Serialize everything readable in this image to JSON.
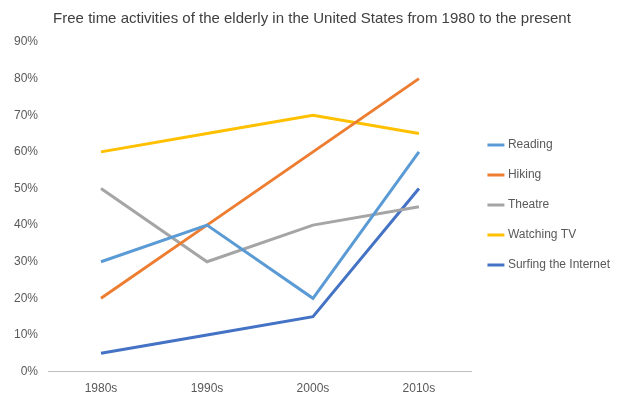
{
  "chart_data": {
    "type": "line",
    "title": "Free time activities of the elderly in the United States from 1980 to the present",
    "categories": [
      "1980s",
      "1990s",
      "2000s",
      "2010s"
    ],
    "series": [
      {
        "name": "Reading",
        "color": "#5b9bd5",
        "values": [
          30,
          40,
          20,
          60
        ]
      },
      {
        "name": "Hiking",
        "color": "#ed7d31",
        "values": [
          20,
          40,
          60,
          80
        ]
      },
      {
        "name": "Theatre",
        "color": "#a5a5a5",
        "values": [
          50,
          30,
          40,
          45
        ]
      },
      {
        "name": "Watching TV",
        "color": "#ffc000",
        "values": [
          60,
          65,
          70,
          65
        ]
      },
      {
        "name": "Surfing the Internet",
        "color": "#4472c4",
        "values": [
          5,
          10,
          15,
          50
        ]
      }
    ],
    "ylim": [
      0,
      90
    ],
    "yticks": [
      {
        "value": 0,
        "label": "0%"
      },
      {
        "value": 10,
        "label": "10%"
      },
      {
        "value": 20,
        "label": "20%"
      },
      {
        "value": 30,
        "label": "30%"
      },
      {
        "value": 40,
        "label": "40%"
      },
      {
        "value": 50,
        "label": "50%"
      },
      {
        "value": 60,
        "label": "60%"
      },
      {
        "value": 70,
        "label": "70%"
      },
      {
        "value": 80,
        "label": "80%"
      },
      {
        "value": 90,
        "label": "90%"
      }
    ],
    "grid": false,
    "legend": "right"
  }
}
